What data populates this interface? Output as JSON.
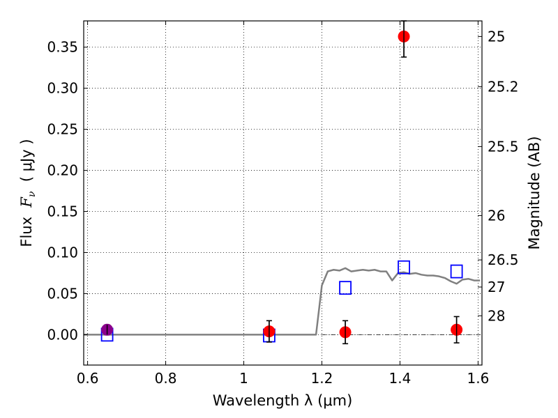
{
  "chart_data": {
    "type": "scatter",
    "xlabel": "Wavelength  λ (μm)",
    "ylabel": "Flux  F_ν  ( μJy )",
    "ylabel_parts": {
      "prefix": "Flux  ",
      "symbol": "F",
      "subscript": "ν",
      "suffix": "  ( μJy )"
    },
    "ylabel_right": "Magnitude (AB)",
    "xlim": [
      0.59,
      1.61
    ],
    "ylim": [
      -0.037,
      0.382
    ],
    "grid": true,
    "x_ticks": [
      0.6,
      0.8,
      1.0,
      1.2,
      1.4,
      1.6
    ],
    "x_tick_labels": [
      "0.6",
      "0.8",
      "1",
      "1.2",
      "1.4",
      "1.6"
    ],
    "y_ticks": [
      0.0,
      0.05,
      0.1,
      0.15,
      0.2,
      0.25,
      0.3,
      0.35
    ],
    "y_tick_labels": [
      "0.00",
      "0.05",
      "0.10",
      "0.15",
      "0.20",
      "0.25",
      "0.30",
      "0.35"
    ],
    "right_ticks": [
      {
        "label": "25",
        "flux": 0.363
      },
      {
        "label": "25.2",
        "flux": 0.302
      },
      {
        "label": "25.5",
        "flux": 0.229
      },
      {
        "label": "26",
        "flux": 0.145
      },
      {
        "label": "26.5",
        "flux": 0.091
      },
      {
        "label": "27",
        "flux": 0.058
      },
      {
        "label": "28",
        "flux": 0.023
      }
    ],
    "series": [
      {
        "kind": "line",
        "color": "#808080",
        "x": [
          0.59,
          1.0,
          1.185,
          1.2,
          1.215,
          1.23,
          1.245,
          1.26,
          1.275,
          1.29,
          1.305,
          1.32,
          1.335,
          1.35,
          1.365,
          1.38,
          1.395,
          1.41,
          1.425,
          1.44,
          1.455,
          1.47,
          1.485,
          1.5,
          1.515,
          1.53,
          1.545,
          1.56,
          1.575,
          1.59,
          1.605
        ],
        "y": [
          0.0,
          0.0,
          0.0,
          0.06,
          0.077,
          0.079,
          0.078,
          0.081,
          0.077,
          0.078,
          0.079,
          0.078,
          0.079,
          0.077,
          0.077,
          0.066,
          0.075,
          0.076,
          0.074,
          0.075,
          0.073,
          0.072,
          0.072,
          0.071,
          0.069,
          0.065,
          0.062,
          0.067,
          0.068,
          0.066,
          0.066
        ]
      },
      {
        "kind": "open-square",
        "color": "#0000ff",
        "x": [
          0.65,
          1.065,
          1.26,
          1.41,
          1.545
        ],
        "y": [
          0.0,
          -0.001,
          0.057,
          0.082,
          0.077
        ]
      },
      {
        "kind": "filled-circle",
        "color": "#ff0000",
        "x": [
          1.065,
          1.26,
          1.41,
          1.545
        ],
        "y": [
          0.004,
          0.003,
          0.363,
          0.006
        ],
        "yerr": [
          0.013,
          0.014,
          0.025,
          0.016
        ]
      },
      {
        "kind": "filled-circle",
        "color": "#8b008b",
        "x": [
          0.65
        ],
        "y": [
          0.006
        ],
        "yerr": [
          0.006
        ]
      }
    ],
    "dashdot_line": {
      "y": 0.0,
      "x_start": 1.2,
      "x_end": 1.61,
      "color": "#000000"
    }
  }
}
